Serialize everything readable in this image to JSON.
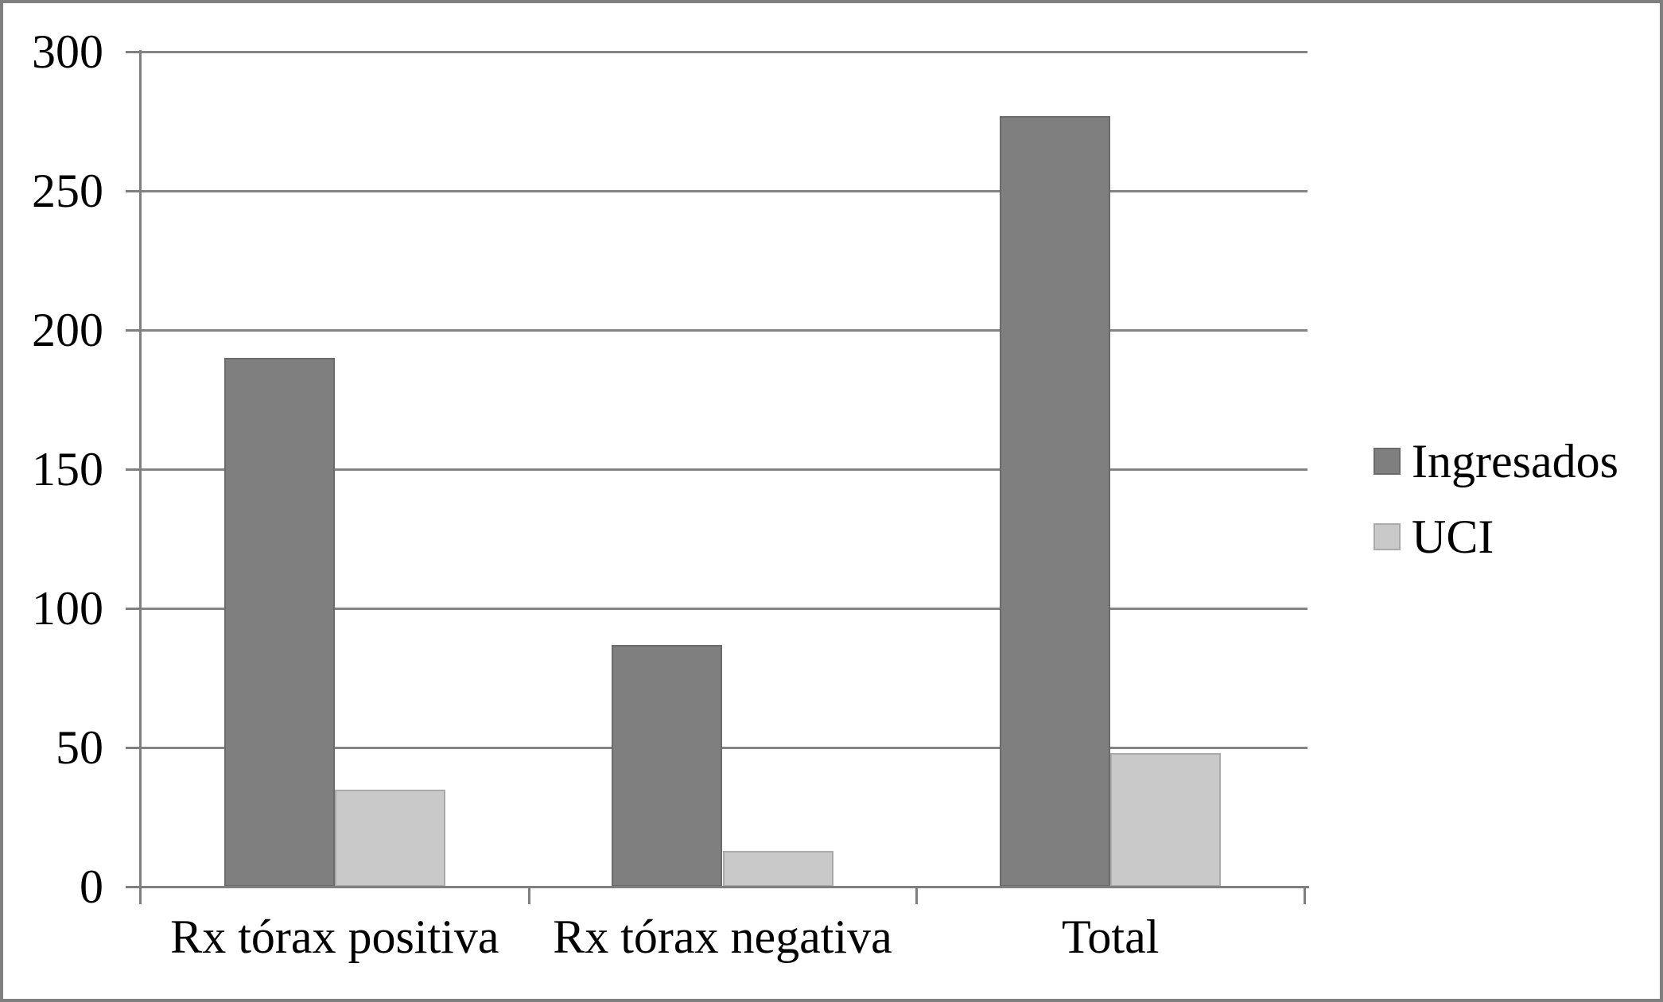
{
  "chart_data": {
    "type": "bar",
    "title": "",
    "xlabel": "",
    "ylabel": "",
    "categories": [
      "Rx tórax positiva",
      "Rx tórax negativa",
      "Total"
    ],
    "series": [
      {
        "name": "Ingresados",
        "values": [
          190,
          87,
          277
        ],
        "color": "#7f7f7f",
        "border_color": "#6b6b6b"
      },
      {
        "name": "UCI",
        "values": [
          35,
          13,
          48
        ],
        "color": "#c9c9c9",
        "border_color": "#aaaaaa"
      }
    ],
    "ylim": [
      0,
      300
    ],
    "ytick_interval": 50,
    "yticks": [
      0,
      50,
      100,
      150,
      200,
      250,
      300
    ],
    "grid": true,
    "legend_position": "right",
    "gap_width_percent": 150,
    "gridline_color": "#848484",
    "axis_color": "#7f7f7f",
    "frame_color": "#7f7f7f",
    "background_color": "#ffffff",
    "text_color": "#000000"
  }
}
